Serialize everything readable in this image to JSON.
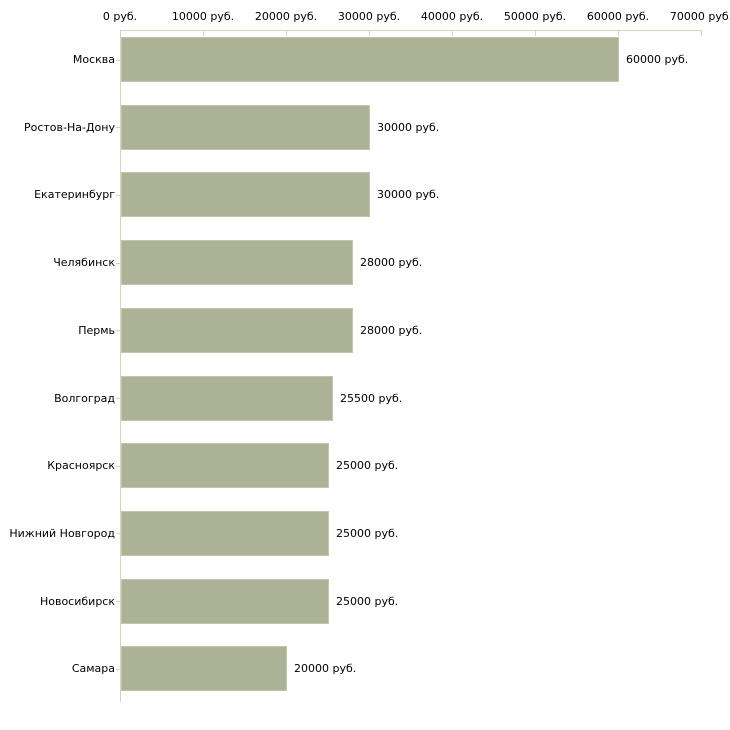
{
  "chart_data": {
    "type": "bar",
    "orientation": "horizontal",
    "title": "",
    "xlabel": "",
    "ylabel": "",
    "categories": [
      "Москва",
      "Ростов-На-Дону",
      "Екатеринбург",
      "Челябинск",
      "Пермь",
      "Волгоград",
      "Красноярск",
      "Нижний Новгород",
      "Новосибирск",
      "Самара"
    ],
    "values": [
      60000,
      30000,
      30000,
      28000,
      28000,
      25500,
      25000,
      25000,
      25000,
      20000
    ],
    "value_labels": [
      "60000 руб.",
      "30000 руб.",
      "30000 руб.",
      "28000 руб.",
      "28000 руб.",
      "25500 руб.",
      "25000 руб.",
      "25000 руб.",
      "25000 руб.",
      "20000 руб."
    ],
    "x_ticks": [
      0,
      10000,
      20000,
      30000,
      40000,
      50000,
      60000,
      70000
    ],
    "x_tick_labels": [
      "0 руб.",
      "10000 руб.",
      "20000 руб.",
      "30000 руб.",
      "40000 руб.",
      "50000 руб.",
      "60000 руб.",
      "70000 руб."
    ],
    "xlim": [
      0,
      70000
    ],
    "unit": "руб.",
    "legend": "none",
    "grid": "off",
    "axis_position": "top",
    "colors": {
      "bar_fill": "#acb296",
      "bar_border": "#c2c6ab",
      "axis_line": "#d6d3b7",
      "text": "#000000",
      "background": "#ffffff"
    }
  }
}
